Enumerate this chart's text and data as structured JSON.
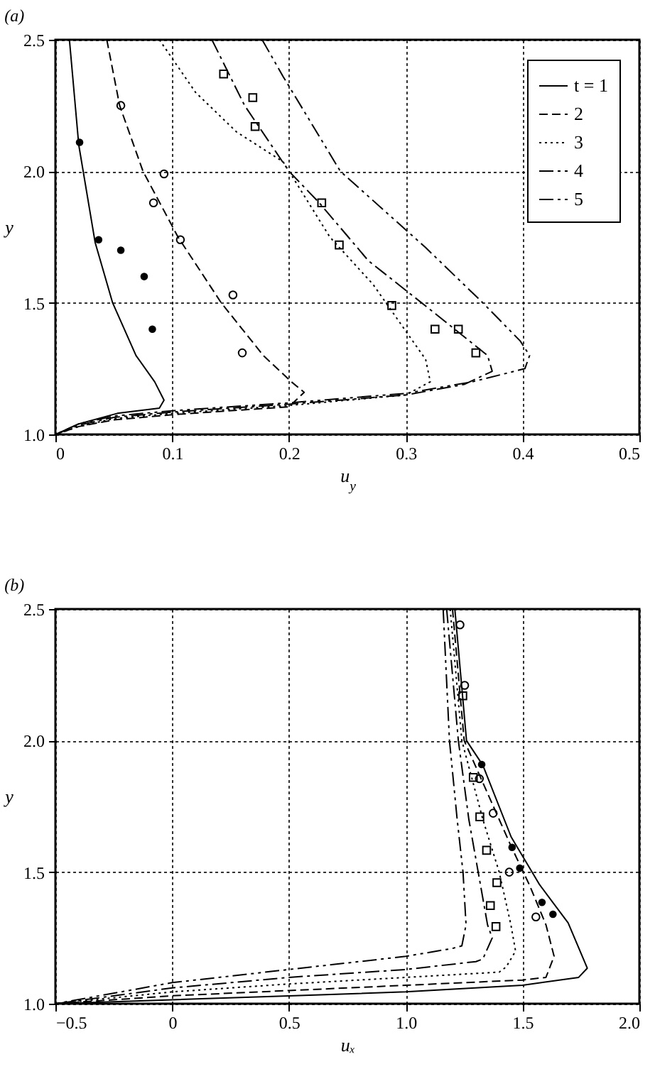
{
  "chart_data": [
    {
      "type": "line",
      "title": "(a)",
      "xlabel": "u$_{y}$",
      "ylabel": "y",
      "xlim": [
        0,
        0.5
      ],
      "xticks": [
        0,
        0.1,
        0.2,
        0.3,
        0.4,
        0.5
      ],
      "ylim": [
        1.0,
        2.5
      ],
      "yticks": [
        {
          "value": 1.0,
          "label": "1.0"
        },
        {
          "value": 1.5,
          "label": "1.5"
        },
        {
          "value": 2.0,
          "label": "2.0"
        },
        {
          "value": 2.5,
          "label": "2.5"
        }
      ],
      "grid": true,
      "legend": "top right",
      "series": [
        {
          "name": "t = 1",
          "color": "#000000",
          "line_style": "solid",
          "x": [
            0.012,
            0.02,
            0.034,
            0.049,
            0.069,
            0.085,
            0.093,
            0.089,
            0.053,
            0.02,
            0
          ],
          "values": [
            2.5,
            2.1,
            1.73,
            1.5,
            1.3,
            1.2,
            1.13,
            1.1,
            1.08,
            1.04,
            1.0
          ]
        },
        {
          "name": "2",
          "color": "#000000",
          "line_style": "dashed",
          "x": [
            0.044,
            0.055,
            0.075,
            0.105,
            0.142,
            0.178,
            0.202,
            0.213,
            0.2,
            0.1,
            0.05,
            0.02,
            0
          ],
          "values": [
            2.5,
            2.25,
            2.0,
            1.75,
            1.5,
            1.3,
            1.2,
            1.16,
            1.105,
            1.075,
            1.055,
            1.03,
            1.0
          ]
        },
        {
          "name": "3",
          "color": "#000000",
          "line_style": "dotted",
          "x": [
            0.089,
            0.12,
            0.155,
            0.195,
            0.235,
            0.272,
            0.317,
            0.321,
            0.3,
            0.2,
            0.1,
            0.05,
            0.02,
            0
          ],
          "values": [
            2.5,
            2.3,
            2.15,
            2.036,
            1.75,
            1.57,
            1.285,
            1.2,
            1.15,
            1.11,
            1.08,
            1.06,
            1.03,
            1.0
          ]
        },
        {
          "name": "4",
          "color": "#000000",
          "line_style": "dashdot",
          "x": [
            0.134,
            0.162,
            0.2,
            0.226,
            0.268,
            0.325,
            0.37,
            0.374,
            0.35,
            0.3,
            0.2,
            0.1,
            0.05,
            0.02,
            0
          ],
          "values": [
            2.5,
            2.25,
            2.0,
            1.88,
            1.66,
            1.46,
            1.3,
            1.24,
            1.19,
            1.15,
            1.115,
            1.085,
            1.065,
            1.035,
            1.0
          ]
        },
        {
          "name": "5",
          "color": "#000000",
          "line_style": "dashdotdot",
          "x": [
            0.177,
            0.195,
            0.244,
            0.317,
            0.366,
            0.398,
            0.406,
            0.402,
            0.357,
            0.3,
            0.2,
            0.1,
            0.05,
            0.02,
            0
          ],
          "values": [
            2.5,
            2.36,
            2.0,
            1.71,
            1.5,
            1.355,
            1.3,
            1.25,
            1.2,
            1.156,
            1.12,
            1.09,
            1.07,
            1.04,
            1.0
          ]
        },
        {
          "type": "scatter",
          "marker": "circle",
          "color": "#000000",
          "x": [
            0.0207,
            0.037,
            0.056,
            0.076,
            0.083
          ],
          "values": [
            2.11,
            1.74,
            1.7,
            1.6,
            1.4
          ]
        },
        {
          "type": "scatter",
          "marker": "circle",
          "x": [
            0.056,
            0.093,
            0.084,
            0.107,
            0.152,
            0.16
          ],
          "values": [
            2.25,
            1.99,
            1.88,
            1.74,
            1.53,
            1.31
          ]
        },
        {
          "type": "scatter",
          "marker": "square",
          "x": [
            0.144,
            0.169,
            0.171,
            0.228,
            0.243,
            0.288,
            0.325,
            0.345,
            0.36
          ],
          "values": [
            2.37,
            2.28,
            2.17,
            1.88,
            1.72,
            1.49,
            1.4,
            1.4,
            1.31
          ]
        }
      ]
    },
    {
      "type": "line",
      "title": "(b)",
      "xlabel": "uₓ",
      "ylabel": "y",
      "xlim": [
        -0.5,
        2.0
      ],
      "xticks": [
        {
          "value": -0.5,
          "label": "−0.5"
        },
        0,
        0.5,
        {
          "value": 1.0,
          "label": "1.0"
        },
        1.5,
        {
          "value": 2.0,
          "label": "2.0"
        }
      ],
      "ylim": [
        1.0,
        2.5
      ],
      "yticks": [
        {
          "value": 1.0,
          "label": "1.0"
        },
        {
          "value": 1.5,
          "label": "1.5"
        },
        {
          "value": 2.0,
          "label": "2.0"
        },
        {
          "value": 2.5,
          "label": "2.5"
        }
      ],
      "grid": true,
      "series": [
        {
          "color": "#000000",
          "line_style": "solid",
          "x": [
            1.21,
            1.26,
            1.33,
            1.451,
            1.573,
            1.695,
            1.777,
            1.74,
            1.5,
            1.0,
            0.5,
            0,
            -0.5
          ],
          "values": [
            2.5,
            2.0,
            1.906,
            1.634,
            1.452,
            1.307,
            1.135,
            1.1,
            1.07,
            1.045,
            1.03,
            1.015,
            1.0
          ]
        },
        {
          "color": "#000000",
          "line_style": "dashed",
          "x": [
            1.2,
            1.25,
            1.35,
            1.45,
            1.53,
            1.6,
            1.635,
            1.6,
            1.5,
            1.0,
            0.5,
            0,
            -0.5
          ],
          "values": [
            2.5,
            2.0,
            1.8,
            1.6,
            1.45,
            1.3,
            1.18,
            1.1,
            1.09,
            1.07,
            1.05,
            1.03,
            1.0
          ]
        },
        {
          "color": "#000000",
          "line_style": "dotted",
          "x": [
            1.19,
            1.24,
            1.33,
            1.4,
            1.45,
            1.47,
            1.43,
            1.4,
            1.0,
            0.5,
            0,
            -0.5
          ],
          "values": [
            2.5,
            2.0,
            1.7,
            1.5,
            1.3,
            1.2,
            1.14,
            1.12,
            1.1,
            1.075,
            1.045,
            1.0
          ]
        },
        {
          "color": "#000000",
          "line_style": "dashdot",
          "x": [
            1.175,
            1.225,
            1.27,
            1.31,
            1.35,
            1.37,
            1.33,
            1.3,
            1.0,
            0.5,
            0,
            -0.5
          ],
          "values": [
            2.5,
            2.0,
            1.7,
            1.5,
            1.3,
            1.25,
            1.17,
            1.16,
            1.13,
            1.1,
            1.06,
            1.0
          ]
        },
        {
          "color": "#000000",
          "line_style": "dashdotdot",
          "x": [
            1.16,
            1.187,
            1.22,
            1.245,
            1.258,
            1.24,
            1.2,
            1.0,
            0.5,
            0,
            -0.5
          ],
          "values": [
            2.5,
            2.0,
            1.7,
            1.5,
            1.3,
            1.22,
            1.21,
            1.18,
            1.13,
            1.08,
            1.0
          ]
        },
        {
          "type": "scatter",
          "marker": "circle",
          "color": "#000000",
          "x": [
            1.325,
            1.455,
            1.488,
            1.583,
            1.63
          ],
          "values": [
            1.909,
            1.594,
            1.515,
            1.385,
            1.34
          ]
        },
        {
          "type": "scatter",
          "marker": "circle",
          "x": [
            1.232,
            1.252,
            1.315,
            1.374,
            1.443,
            1.557
          ],
          "values": [
            2.44,
            2.21,
            1.855,
            1.724,
            1.5,
            1.33
          ]
        },
        {
          "type": "scatter",
          "marker": "square",
          "x": [
            1.244,
            1.289,
            1.317,
            1.346,
            1.39,
            1.362,
            1.386
          ],
          "values": [
            2.17,
            1.86,
            1.71,
            1.583,
            1.46,
            1.373,
            1.293
          ]
        }
      ]
    }
  ]
}
